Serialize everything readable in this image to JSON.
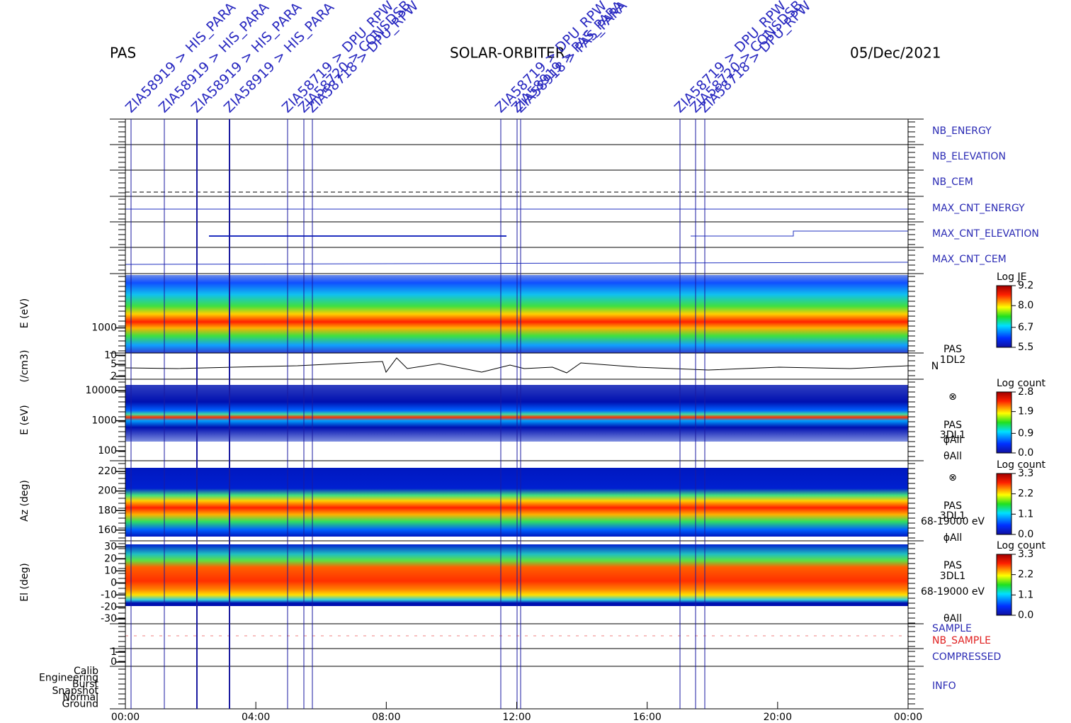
{
  "header": {
    "left": "PAS",
    "center": "SOLAR-ORBITER",
    "right": "05/Dec/2021"
  },
  "events": [
    "ZIA58919 > HIS_PARA",
    "ZIA58919 > HIS_PARA",
    "ZIA58919 > HIS_PARA",
    "ZIA58919 > HIS_PARA",
    "ZIA58719 > DPU_RPW",
    "ZIA58720 > CONSDSB",
    "ZIA58718 > DPU_RPW",
    "ZIA58719 > DPU_RPW",
    "ZIA58919 > PAS_PARA",
    "ZIA58918 > PAS_PARA",
    "ZIA58719 > DPU_RPW",
    "ZIA58720 > CONSDSB",
    "ZIA58718 > DPU_RPW"
  ],
  "right_labels": [
    {
      "text": "NB_ENERGY",
      "color": "#2a2ab4"
    },
    {
      "text": "NB_ELEVATION",
      "color": "#2a2ab4"
    },
    {
      "text": "NB_CEM",
      "color": "#2a2ab4"
    },
    {
      "text": "MAX_CNT_ENERGY",
      "color": "#2a2ab4"
    },
    {
      "text": "MAX_CNT_ELEVATION",
      "color": "#2a2ab4"
    },
    {
      "text": "MAX_CNT_CEM",
      "color": "#2a2ab4"
    },
    {
      "text": "SAMPLE",
      "color": "#2a2ab4"
    },
    {
      "text": "NB_SAMPLE",
      "color": "#e02020"
    },
    {
      "text": "COMPRESSED",
      "color": "#2a2ab4"
    },
    {
      "text": "INFO",
      "color": "#2a2ab4"
    }
  ],
  "axes": [
    {
      "title": "E (eV)",
      "scale": "log",
      "ylim": [
        250,
        20000
      ],
      "yticks": [
        1000
      ]
    },
    {
      "title": "(/cm3)",
      "scale": "log",
      "ylim": [
        1.6,
        12
      ],
      "yticks": [
        10,
        5,
        2
      ]
    },
    {
      "title": "E (eV)",
      "scale": "log",
      "ylim": [
        47,
        23800
      ],
      "yticks": [
        10000,
        1000,
        100
      ]
    },
    {
      "title": "Az (deg)",
      "scale": "linear",
      "ylim": [
        149,
        231
      ],
      "yticks": [
        220,
        200,
        180,
        160
      ]
    },
    {
      "title": "El (deg)",
      "scale": "linear",
      "ylim": [
        -34,
        35
      ],
      "yticks": [
        30,
        20,
        10,
        0,
        -10,
        -20,
        -30
      ]
    },
    {
      "scale": "linear",
      "ylim": [
        -0.43,
        1.36
      ],
      "yticks": [
        1,
        0
      ]
    }
  ],
  "info_levels": [
    "Calib",
    "Engineering",
    "Burst",
    "Snapshot",
    "Normal",
    "Ground"
  ],
  "x_ticks": [
    "00:00",
    "04:00",
    "08:00",
    "12:00",
    "16:00",
    "20:00",
    "00:00"
  ],
  "colorbars": [
    {
      "title": "Log JE",
      "lim": [
        5.5,
        9.2
      ],
      "ticks": [
        9.2,
        {
          "value": 8,
          "label": "8.0"
        },
        6.7,
        5.5
      ]
    },
    {
      "title": "Log count",
      "lim": [
        0,
        2.8
      ],
      "ticks": [
        2.8,
        1.9,
        0.9,
        {
          "value": 0,
          "label": "0.0"
        }
      ]
    },
    {
      "title": "Log count",
      "lim": [
        0,
        3.3
      ],
      "ticks": [
        3.3,
        2.2,
        1.1,
        {
          "value": 0,
          "label": "0.0"
        }
      ]
    },
    {
      "title": "Log count",
      "lim": [
        0,
        3.3
      ],
      "ticks": [
        3.3,
        2.2,
        1.1,
        {
          "value": 0,
          "label": "0.0"
        }
      ]
    }
  ],
  "side_notes": [
    [
      "PAS",
      "1DL2",
      "N"
    ],
    [
      "⊗",
      "PAS",
      "3DL1",
      "ϕAll",
      "θAll"
    ],
    [
      "⊗",
      "PAS",
      "3DL1",
      "68-19000 eV",
      "ϕAll"
    ],
    [
      "PAS",
      "3DL1",
      "68-19000 eV",
      "θAll"
    ]
  ]
}
